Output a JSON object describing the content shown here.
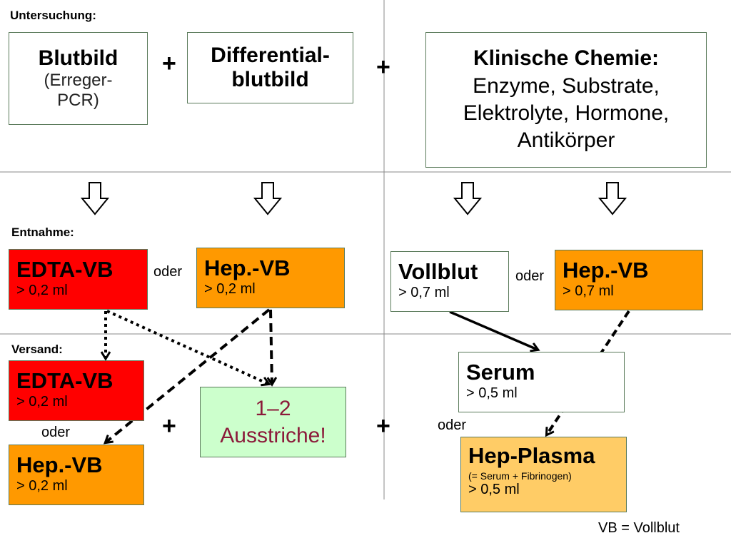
{
  "sections": {
    "untersuchung": "Untersuchung:",
    "entnahme": "Entnahme:",
    "versand": "Versand:"
  },
  "untersuchung": {
    "blutbild": {
      "title": "Blutbild",
      "line1": "(Erreger-",
      "line2": "PCR)"
    },
    "differential": {
      "line1": "Differential-",
      "line2": "blutbild"
    },
    "chemie": {
      "title": "Klinische Chemie:",
      "line1": "Enzyme, Substrate,",
      "line2": "Elektrolyte, Hormone,",
      "line3": "Antikörper"
    },
    "plus": "+"
  },
  "entnahme": {
    "edta": {
      "title": "EDTA-VB",
      "volume": "> 0,2 ml"
    },
    "hep_left": {
      "title": "Hep.-VB",
      "volume": "> 0,2 ml"
    },
    "vollblut": {
      "title": "Vollblut",
      "volume": "> 0,7 ml"
    },
    "hep_right": {
      "title": "Hep.-VB",
      "volume": "> 0,7 ml"
    },
    "oder": "oder"
  },
  "versand": {
    "edta": {
      "title": "EDTA-VB",
      "volume": "> 0,2 ml"
    },
    "hep": {
      "title": "Hep.-VB",
      "volume": "> 0,2 ml"
    },
    "ausstriche": {
      "line1": "1–2",
      "line2": "Ausstriche!"
    },
    "serum": {
      "title": "Serum",
      "volume": "> 0,5 ml"
    },
    "plasma": {
      "title": "Hep-Plasma",
      "note": "(= Serum + Fibrinogen)",
      "volume": "> 0,5 ml"
    },
    "oder": "oder",
    "plus": "+"
  },
  "legend": "VB = Vollblut",
  "colors": {
    "red": "#ff0000",
    "orange": "#ff9900",
    "light_orange": "#ffcc66",
    "green": "#ccffcc",
    "ausstriche_text": "#8b1a3a",
    "border": "#5a7a5a"
  }
}
